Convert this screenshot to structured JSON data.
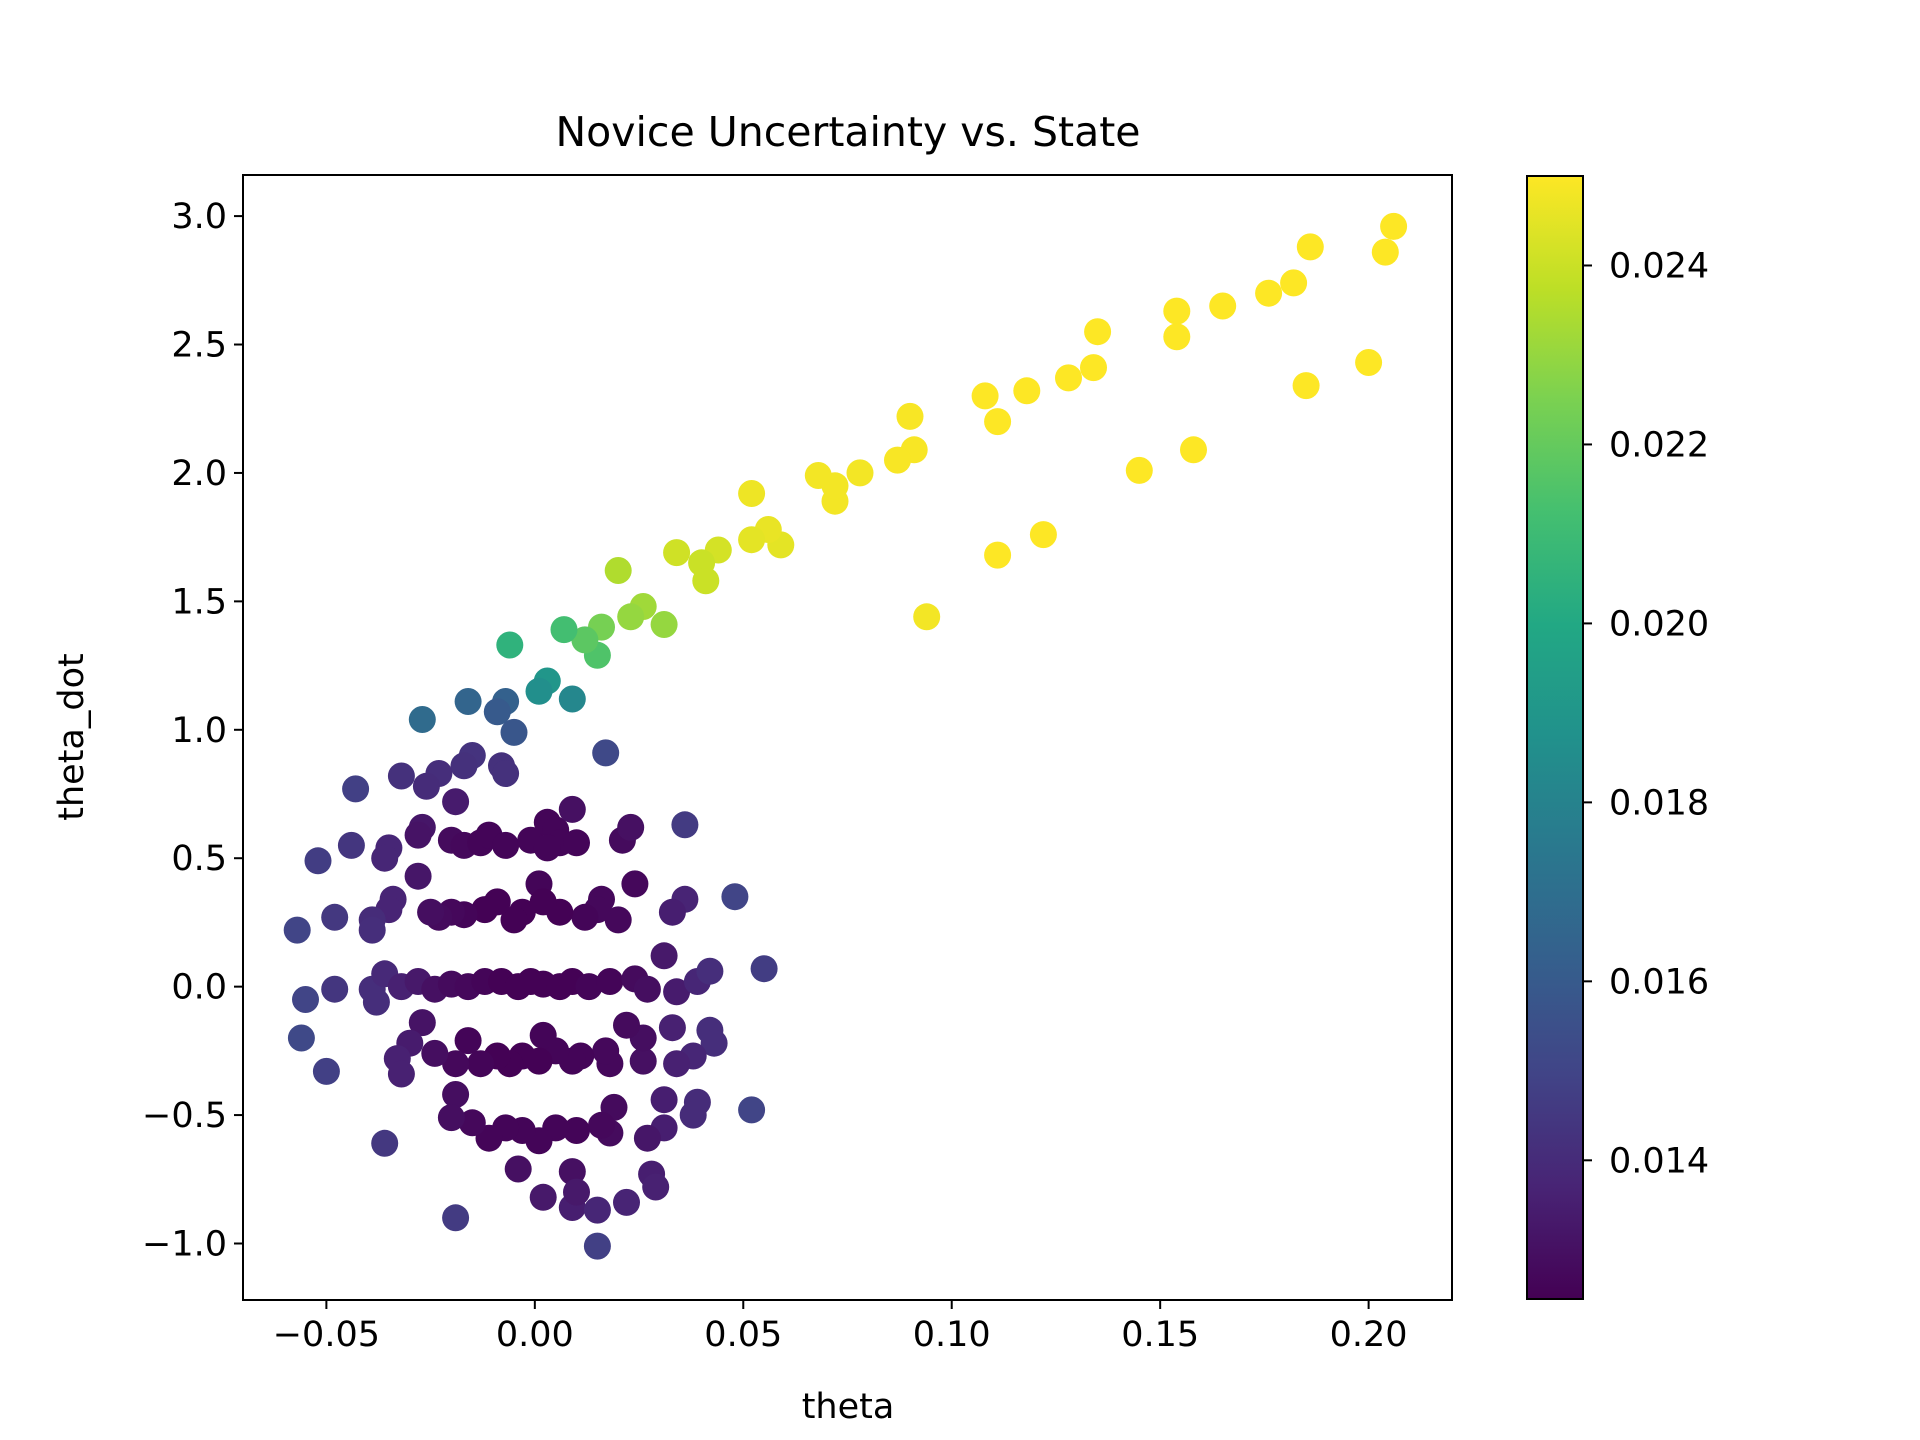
{
  "chart_data": {
    "type": "scatter",
    "title": "Novice Uncertainty vs. State",
    "xlabel": "theta",
    "ylabel": "theta_dot",
    "xlim": [
      -0.07,
      0.22
    ],
    "ylim": [
      -1.22,
      3.16
    ],
    "xticks": [
      -0.05,
      0.0,
      0.05,
      0.1,
      0.15,
      0.2
    ],
    "xtick_labels": [
      "−0.05",
      "0.00",
      "0.05",
      "0.10",
      "0.15",
      "0.20"
    ],
    "yticks": [
      -1.0,
      -0.5,
      0.0,
      0.5,
      1.0,
      1.5,
      2.0,
      2.5,
      3.0
    ],
    "ytick_labels": [
      "−1.0",
      "−0.5",
      "0.0",
      "0.5",
      "1.0",
      "1.5",
      "2.0",
      "2.5",
      "3.0"
    ],
    "grid": false,
    "colorbar": {
      "colormap": "viridis",
      "range": [
        0.01245,
        0.025
      ],
      "ticks": [
        0.014,
        0.016,
        0.018,
        0.02,
        0.022,
        0.024
      ],
      "tick_labels": [
        "0.014",
        "0.016",
        "0.018",
        "0.020",
        "0.022",
        "0.024"
      ]
    },
    "points": [
      [
        0.206,
        2.96,
        0.025
      ],
      [
        0.204,
        2.86,
        0.025
      ],
      [
        0.186,
        2.88,
        0.025
      ],
      [
        0.182,
        2.74,
        0.025
      ],
      [
        0.176,
        2.7,
        0.025
      ],
      [
        0.165,
        2.65,
        0.025
      ],
      [
        0.154,
        2.63,
        0.025
      ],
      [
        0.154,
        2.53,
        0.025
      ],
      [
        0.135,
        2.55,
        0.025
      ],
      [
        0.134,
        2.41,
        0.025
      ],
      [
        0.128,
        2.37,
        0.025
      ],
      [
        0.118,
        2.32,
        0.025
      ],
      [
        0.111,
        2.2,
        0.025
      ],
      [
        0.108,
        2.3,
        0.025
      ],
      [
        0.091,
        2.09,
        0.0249
      ],
      [
        0.09,
        2.22,
        0.0249
      ],
      [
        0.087,
        2.05,
        0.0249
      ],
      [
        0.078,
        2.0,
        0.0248
      ],
      [
        0.072,
        1.89,
        0.0248
      ],
      [
        0.072,
        1.95,
        0.0248
      ],
      [
        0.068,
        1.99,
        0.0248
      ],
      [
        0.059,
        1.72,
        0.0245
      ],
      [
        0.056,
        1.78,
        0.0246
      ],
      [
        0.052,
        1.92,
        0.0247
      ],
      [
        0.052,
        1.74,
        0.0245
      ],
      [
        0.2,
        2.43,
        0.025
      ],
      [
        0.185,
        2.34,
        0.025
      ],
      [
        0.158,
        2.09,
        0.025
      ],
      [
        0.145,
        2.01,
        0.025
      ],
      [
        0.122,
        1.76,
        0.025
      ],
      [
        0.111,
        1.68,
        0.025
      ],
      [
        0.094,
        1.44,
        0.0248
      ],
      [
        0.044,
        1.7,
        0.0242
      ],
      [
        0.04,
        1.65,
        0.024
      ],
      [
        0.041,
        1.58,
        0.024
      ],
      [
        0.034,
        1.69,
        0.0241
      ],
      [
        0.031,
        1.41,
        0.023
      ],
      [
        0.026,
        1.48,
        0.0232
      ],
      [
        0.023,
        1.44,
        0.023
      ],
      [
        0.02,
        1.62,
        0.0235
      ],
      [
        0.016,
        1.4,
        0.0224
      ],
      [
        0.015,
        1.29,
        0.0215
      ],
      [
        0.012,
        1.35,
        0.0218
      ],
      [
        0.007,
        1.39,
        0.0212
      ],
      [
        0.003,
        1.19,
        0.019
      ],
      [
        0.001,
        1.15,
        0.0186
      ],
      [
        0.009,
        1.12,
        0.0182
      ],
      [
        -0.006,
        1.33,
        0.0205
      ],
      [
        -0.007,
        1.11,
        0.0163
      ],
      [
        -0.009,
        1.07,
        0.016
      ],
      [
        -0.005,
        0.99,
        0.0158
      ],
      [
        -0.016,
        1.11,
        0.0165
      ],
      [
        -0.027,
        1.04,
        0.0168
      ],
      [
        0.017,
        0.91,
        0.0152
      ],
      [
        -0.008,
        0.86,
        0.0142
      ],
      [
        -0.007,
        0.83,
        0.0142
      ],
      [
        -0.015,
        0.9,
        0.0143
      ],
      [
        -0.017,
        0.86,
        0.0142
      ],
      [
        -0.023,
        0.83,
        0.0141
      ],
      [
        -0.026,
        0.78,
        0.014
      ],
      [
        -0.032,
        0.82,
        0.0142
      ],
      [
        -0.043,
        0.77,
        0.0148
      ],
      [
        -0.019,
        0.72,
        0.0134
      ],
      [
        -0.044,
        0.55,
        0.0144
      ],
      [
        -0.052,
        0.49,
        0.0147
      ],
      [
        -0.035,
        0.54,
        0.0138
      ],
      [
        -0.036,
        0.5,
        0.0138
      ],
      [
        -0.027,
        0.62,
        0.0132
      ],
      [
        -0.028,
        0.59,
        0.0131
      ],
      [
        -0.02,
        0.57,
        0.0128
      ],
      [
        -0.017,
        0.55,
        0.0127
      ],
      [
        -0.013,
        0.56,
        0.0126
      ],
      [
        -0.011,
        0.59,
        0.0126
      ],
      [
        -0.007,
        0.55,
        0.0126
      ],
      [
        -0.001,
        0.57,
        0.0126
      ],
      [
        0.003,
        0.64,
        0.0126
      ],
      [
        0.005,
        0.61,
        0.0126
      ],
      [
        0.006,
        0.56,
        0.0126
      ],
      [
        0.009,
        0.69,
        0.013
      ],
      [
        0.01,
        0.56,
        0.0126
      ],
      [
        0.003,
        0.54,
        0.0126
      ],
      [
        0.021,
        0.57,
        0.0128
      ],
      [
        0.023,
        0.62,
        0.013
      ],
      [
        0.036,
        0.63,
        0.0146
      ],
      [
        0.024,
        0.4,
        0.0127
      ],
      [
        0.048,
        0.35,
        0.015
      ],
      [
        0.036,
        0.34,
        0.0137
      ],
      [
        0.033,
        0.29,
        0.0135
      ],
      [
        0.02,
        0.26,
        0.0127
      ],
      [
        0.016,
        0.34,
        0.0127
      ],
      [
        0.015,
        0.3,
        0.0127
      ],
      [
        0.012,
        0.27,
        0.0126
      ],
      [
        0.006,
        0.29,
        0.0125
      ],
      [
        0.001,
        0.4,
        0.0126
      ],
      [
        0.002,
        0.33,
        0.0125
      ],
      [
        -0.003,
        0.29,
        0.0125
      ],
      [
        -0.005,
        0.26,
        0.0125
      ],
      [
        -0.009,
        0.33,
        0.0125
      ],
      [
        -0.012,
        0.3,
        0.0125
      ],
      [
        -0.017,
        0.28,
        0.0126
      ],
      [
        -0.02,
        0.29,
        0.0127
      ],
      [
        -0.023,
        0.27,
        0.0128
      ],
      [
        -0.025,
        0.29,
        0.0129
      ],
      [
        -0.028,
        0.43,
        0.0132
      ],
      [
        -0.034,
        0.34,
        0.0137
      ],
      [
        -0.035,
        0.3,
        0.0137
      ],
      [
        -0.039,
        0.26,
        0.014
      ],
      [
        -0.039,
        0.22,
        0.0141
      ],
      [
        -0.048,
        0.27,
        0.0145
      ],
      [
        -0.057,
        0.22,
        0.015
      ],
      [
        -0.055,
        -0.05,
        0.015
      ],
      [
        -0.048,
        -0.01,
        0.0144
      ],
      [
        -0.039,
        -0.01,
        0.0141
      ],
      [
        -0.038,
        -0.06,
        0.0141
      ],
      [
        -0.036,
        0.05,
        0.0139
      ],
      [
        -0.032,
        0.0,
        0.0136
      ],
      [
        -0.028,
        0.02,
        0.0133
      ],
      [
        -0.024,
        -0.01,
        0.013
      ],
      [
        -0.02,
        0.01,
        0.0128
      ],
      [
        -0.016,
        0.0,
        0.0127
      ],
      [
        -0.012,
        0.02,
        0.0126
      ],
      [
        -0.008,
        0.02,
        0.0125
      ],
      [
        -0.004,
        0.0,
        0.0125
      ],
      [
        -0.001,
        0.02,
        0.0125
      ],
      [
        0.002,
        0.01,
        0.0125
      ],
      [
        0.006,
        0.0,
        0.0125
      ],
      [
        0.009,
        0.02,
        0.0125
      ],
      [
        0.013,
        0.0,
        0.0126
      ],
      [
        0.018,
        0.02,
        0.0126
      ],
      [
        0.024,
        0.03,
        0.0128
      ],
      [
        0.027,
        -0.01,
        0.0129
      ],
      [
        0.031,
        0.12,
        0.0133
      ],
      [
        0.034,
        -0.02,
        0.0134
      ],
      [
        0.039,
        0.02,
        0.0138
      ],
      [
        0.042,
        0.06,
        0.0141
      ],
      [
        0.055,
        0.07,
        0.0147
      ],
      [
        0.033,
        -0.16,
        0.0136
      ],
      [
        0.042,
        -0.17,
        0.0141
      ],
      [
        0.043,
        -0.22,
        0.0141
      ],
      [
        0.038,
        -0.27,
        0.0138
      ],
      [
        0.034,
        -0.3,
        0.0136
      ],
      [
        0.026,
        -0.29,
        0.013
      ],
      [
        0.026,
        -0.2,
        0.0129
      ],
      [
        0.022,
        -0.15,
        0.0128
      ],
      [
        0.018,
        -0.3,
        0.0127
      ],
      [
        0.017,
        -0.25,
        0.0127
      ],
      [
        0.011,
        -0.27,
        0.0126
      ],
      [
        0.009,
        -0.29,
        0.0126
      ],
      [
        0.005,
        -0.25,
        0.0126
      ],
      [
        0.002,
        -0.19,
        0.0126
      ],
      [
        0.001,
        -0.29,
        0.0125
      ],
      [
        -0.003,
        -0.27,
        0.0125
      ],
      [
        -0.006,
        -0.3,
        0.0125
      ],
      [
        -0.009,
        -0.27,
        0.0125
      ],
      [
        -0.013,
        -0.3,
        0.0126
      ],
      [
        -0.016,
        -0.21,
        0.0126
      ],
      [
        -0.019,
        -0.3,
        0.0127
      ],
      [
        -0.024,
        -0.26,
        0.0129
      ],
      [
        -0.027,
        -0.14,
        0.0131
      ],
      [
        -0.03,
        -0.22,
        0.0134
      ],
      [
        -0.033,
        -0.28,
        0.0136
      ],
      [
        -0.032,
        -0.34,
        0.0136
      ],
      [
        -0.05,
        -0.33,
        0.0148
      ],
      [
        -0.056,
        -0.2,
        0.0152
      ],
      [
        0.052,
        -0.48,
        0.015
      ],
      [
        0.039,
        -0.45,
        0.014
      ],
      [
        0.038,
        -0.5,
        0.014
      ],
      [
        0.031,
        -0.44,
        0.0135
      ],
      [
        0.031,
        -0.55,
        0.0135
      ],
      [
        0.027,
        -0.59,
        0.0132
      ],
      [
        0.019,
        -0.47,
        0.0128
      ],
      [
        0.018,
        -0.57,
        0.0128
      ],
      [
        0.016,
        -0.54,
        0.0127
      ],
      [
        0.01,
        -0.56,
        0.0126
      ],
      [
        0.005,
        -0.55,
        0.0126
      ],
      [
        0.001,
        -0.6,
        0.0126
      ],
      [
        -0.003,
        -0.56,
        0.0126
      ],
      [
        -0.007,
        -0.55,
        0.0126
      ],
      [
        -0.011,
        -0.59,
        0.0126
      ],
      [
        -0.015,
        -0.53,
        0.0127
      ],
      [
        -0.019,
        -0.42,
        0.0129
      ],
      [
        -0.02,
        -0.51,
        0.0129
      ],
      [
        -0.036,
        -0.61,
        0.0145
      ],
      [
        -0.004,
        -0.71,
        0.013
      ],
      [
        0.002,
        -0.82,
        0.0133
      ],
      [
        0.009,
        -0.72,
        0.013
      ],
      [
        0.009,
        -0.86,
        0.0135
      ],
      [
        0.01,
        -0.8,
        0.0133
      ],
      [
        0.015,
        -0.87,
        0.0138
      ],
      [
        0.022,
        -0.84,
        0.0137
      ],
      [
        0.028,
        -0.73,
        0.0135
      ],
      [
        0.029,
        -0.78,
        0.0136
      ],
      [
        0.015,
        -1.01,
        0.0148
      ],
      [
        -0.019,
        -0.9,
        0.0146
      ]
    ]
  }
}
